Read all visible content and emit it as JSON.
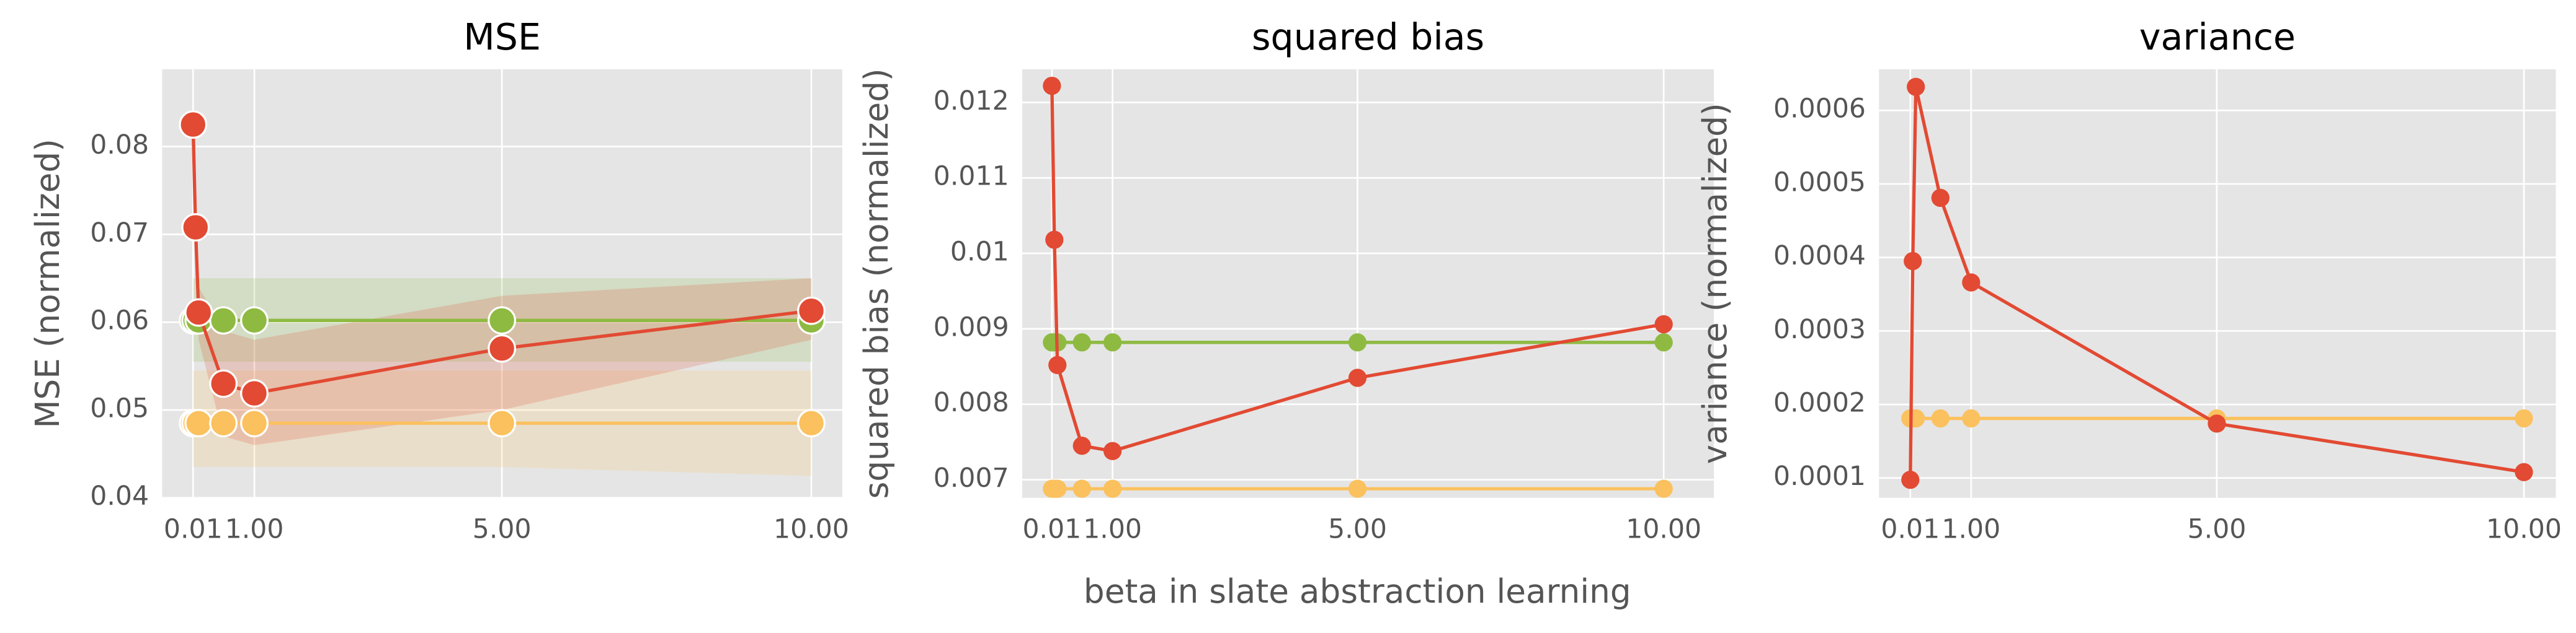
{
  "chart_data": [
    {
      "type": "line",
      "title": "MSE",
      "y_label": "MSE (normalized)",
      "x": [
        0.01,
        0.05,
        0.1,
        0.5,
        1,
        5,
        10
      ],
      "series": [
        {
          "color": "#E24A33",
          "values": [
            0.0825,
            0.0708,
            0.0611,
            0.053,
            0.0519,
            0.057,
            0.0613
          ],
          "lower": [
            0.0815,
            0.068,
            0.058,
            0.047,
            0.046,
            0.05,
            0.058
          ],
          "upper": [
            0.0835,
            0.073,
            0.064,
            0.059,
            0.058,
            0.063,
            0.065
          ]
        },
        {
          "color": "#8EBA42",
          "values": [
            0.0602,
            0.0602,
            0.0602,
            0.0602,
            0.0602,
            0.0602,
            0.0602
          ],
          "lower": [
            0.0555,
            0.0555,
            0.0555,
            0.0555,
            0.0555,
            0.0555,
            0.0555
          ],
          "upper": [
            0.065,
            0.065,
            0.065,
            0.065,
            0.065,
            0.065,
            0.065
          ]
        },
        {
          "color": "#FBC15E",
          "values": [
            0.0485,
            0.0485,
            0.0485,
            0.0485,
            0.0485,
            0.0485,
            0.0485
          ],
          "lower": [
            0.0435,
            0.0435,
            0.0435,
            0.0435,
            0.0435,
            0.0435,
            0.0425
          ],
          "upper": [
            0.0545,
            0.0545,
            0.0545,
            0.0545,
            0.0545,
            0.0545,
            0.0545
          ]
        }
      ],
      "xlim": [
        -0.49,
        10.5
      ],
      "ylim": [
        0.04,
        0.0888
      ],
      "xticks": [
        {
          "value": 0.01,
          "label": "0.01"
        },
        {
          "value": 1,
          "label": "1.00"
        },
        {
          "value": 5,
          "label": "5.00"
        },
        {
          "value": 10,
          "label": "10.00"
        }
      ],
      "yticks": [
        0.04,
        0.05,
        0.06,
        0.07,
        0.08
      ],
      "grid": true
    },
    {
      "type": "line",
      "title": "squared bias",
      "y_label": "squared bias (normalized)",
      "x_label": "beta in slate abstraction learning",
      "x": [
        0.01,
        0.05,
        0.1,
        0.5,
        1,
        5,
        10
      ],
      "series": [
        {
          "color": "#E24A33",
          "values": [
            0.01222,
            0.01018,
            0.00852,
            0.00745,
            0.00738,
            0.00835,
            0.00906
          ]
        },
        {
          "color": "#8EBA42",
          "values": [
            0.00882,
            0.00882,
            0.00882,
            0.00882,
            0.00882,
            0.00882,
            0.00882
          ]
        },
        {
          "color": "#FBC15E",
          "values": [
            0.00688,
            0.00688,
            0.00688,
            0.00688,
            0.00688,
            0.00688,
            0.00688
          ]
        }
      ],
      "xlim": [
        -0.475,
        10.82
      ],
      "ylim": [
        0.00676,
        0.01244
      ],
      "xticks": [
        {
          "value": 0.01,
          "label": "0.01"
        },
        {
          "value": 1,
          "label": "1.00"
        },
        {
          "value": 5,
          "label": "5.00"
        },
        {
          "value": 10,
          "label": "10.00"
        }
      ],
      "yticks": [
        0.007,
        0.008,
        0.009,
        0.01,
        0.011,
        0.012
      ],
      "grid": true
    },
    {
      "type": "line",
      "title": "variance",
      "y_label": "variance (normalized)",
      "x": [
        0.01,
        0.05,
        0.1,
        0.5,
        1,
        5,
        10
      ],
      "series": [
        {
          "color": "#E24A33",
          "values": [
            9.75e-05,
            0.000395,
            0.000632,
            0.000481,
            0.000366,
            0.000174,
            0.000108
          ]
        },
        {
          "color": "#FBC15E",
          "values": [
            0.000181,
            0.000181,
            0.000181,
            0.000181,
            0.000181,
            0.000181,
            0.000181
          ]
        }
      ],
      "xlim": [
        -0.5,
        10.52
      ],
      "ylim": [
        7.3e-05,
        0.000656
      ],
      "xticks": [
        {
          "value": 0.01,
          "label": "0.01"
        },
        {
          "value": 1,
          "label": "1.00"
        },
        {
          "value": 5,
          "label": "5.00"
        },
        {
          "value": 10,
          "label": "10.00"
        }
      ],
      "yticks": [
        0.0001,
        0.0002,
        0.0003,
        0.0004,
        0.0005,
        0.0006
      ],
      "grid": true
    }
  ]
}
